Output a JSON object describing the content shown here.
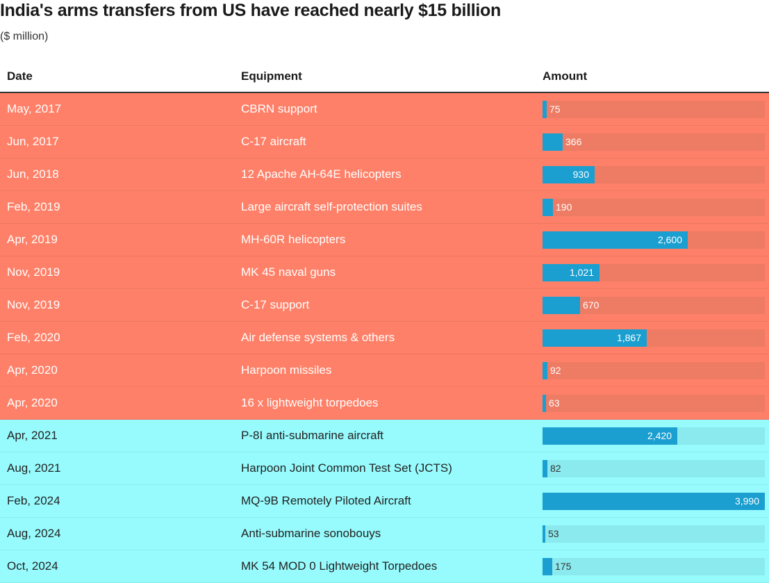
{
  "title": "India's arms transfers from US have reached nearly $15 billion",
  "subtitle": "($ million)",
  "columns": [
    "Date",
    "Equipment",
    "Amount"
  ],
  "colors": {
    "period1_bg": "#ff8068",
    "period2_bg": "#97fbfd",
    "bar": "#1a9fd0",
    "track1": "#ee7b64",
    "track2": "#8aeaee"
  },
  "chart_data": {
    "type": "table",
    "title": "India's arms transfers from US have reached nearly $15 billion",
    "subtitle": "($ million)",
    "columns": [
      "Date",
      "Equipment",
      "Amount"
    ],
    "max": 3990,
    "rows": [
      {
        "date": "May, 2017",
        "equipment": "CBRN support",
        "amount": 75,
        "label": "75",
        "group": "salmon"
      },
      {
        "date": "Jun, 2017",
        "equipment": "C-17 aircraft",
        "amount": 366,
        "label": "366",
        "group": "salmon"
      },
      {
        "date": "Jun, 2018",
        "equipment": "12 Apache AH-64E helicopters",
        "amount": 930,
        "label": "930",
        "group": "salmon"
      },
      {
        "date": "Feb, 2019",
        "equipment": "Large aircraft self-protection suites",
        "amount": 190,
        "label": "190",
        "group": "salmon"
      },
      {
        "date": "Apr, 2019",
        "equipment": "MH-60R helicopters",
        "amount": 2600,
        "label": "2,600",
        "group": "salmon"
      },
      {
        "date": "Nov, 2019",
        "equipment": "MK 45 naval guns",
        "amount": 1021,
        "label": "1,021",
        "group": "salmon"
      },
      {
        "date": "Nov, 2019",
        "equipment": "C-17 support",
        "amount": 670,
        "label": "670",
        "group": "salmon"
      },
      {
        "date": "Feb, 2020",
        "equipment": "Air defense systems & others",
        "amount": 1867,
        "label": "1,867",
        "group": "salmon"
      },
      {
        "date": "Apr, 2020",
        "equipment": "Harpoon missiles",
        "amount": 92,
        "label": "92",
        "group": "salmon"
      },
      {
        "date": "Apr, 2020",
        "equipment": "16 x lightweight torpedoes",
        "amount": 63,
        "label": "63",
        "group": "salmon"
      },
      {
        "date": "Apr, 2021",
        "equipment": "P-8I anti-submarine aircraft",
        "amount": 2420,
        "label": "2,420",
        "group": "cyan"
      },
      {
        "date": "Aug, 2021",
        "equipment": "Harpoon Joint Common Test Set (JCTS)",
        "amount": 82,
        "label": "82",
        "group": "cyan"
      },
      {
        "date": "Feb, 2024",
        "equipment": "MQ-9B Remotely Piloted Aircraft",
        "amount": 3990,
        "label": "3,990",
        "group": "cyan"
      },
      {
        "date": "Aug, 2024",
        "equipment": "Anti-submarine sonobouys",
        "amount": 53,
        "label": "53",
        "group": "cyan"
      },
      {
        "date": "Oct, 2024",
        "equipment": "MK 54 MOD 0 Lightweight Torpedoes",
        "amount": 175,
        "label": "175",
        "group": "cyan"
      }
    ]
  }
}
